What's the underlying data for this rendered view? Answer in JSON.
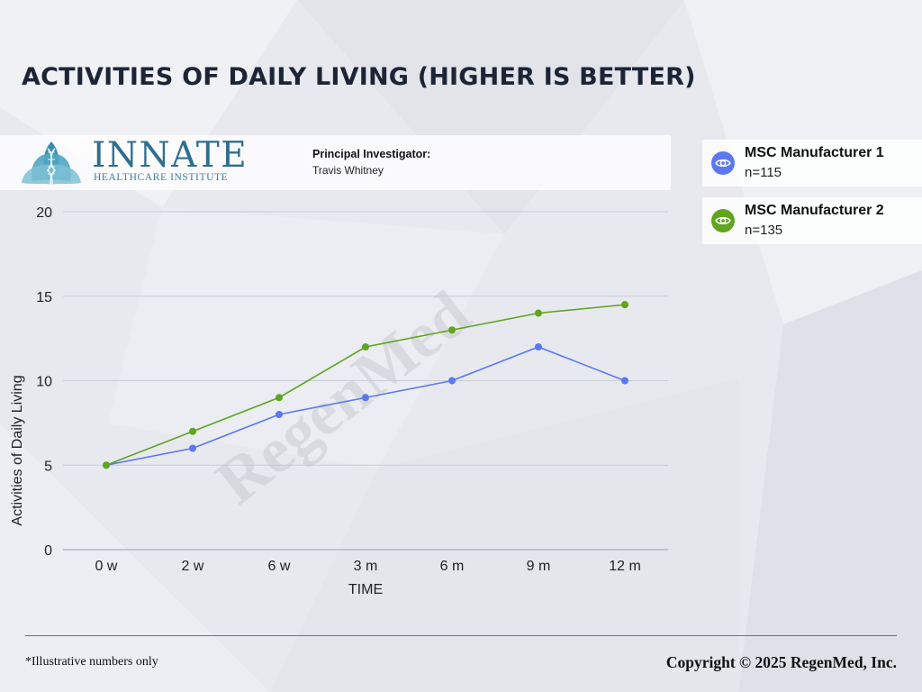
{
  "page": {
    "title": "ACTIVITIES OF DAILY LIVING (HIGHER IS BETTER)",
    "footnote": "*Illustrative numbers only",
    "copyright": "Copyright © 2025 RegenMed, Inc.",
    "watermark": "RegenMed"
  },
  "header": {
    "logo_icon": "lotus-dna-icon",
    "brand_name": "INNATE",
    "brand_subtitle": "HEALTHCARE INSTITUTE",
    "pi_label": "Principal Investigator:",
    "pi_name": "Travis Whitney"
  },
  "legend": [
    {
      "name": "MSC Manufacturer 1",
      "n": "n=115",
      "icon": "eye-icon",
      "color": "#5b78f0"
    },
    {
      "name": "MSC Manufacturer 2",
      "n": "n=135",
      "icon": "eye-icon",
      "color": "#5fa51f"
    }
  ],
  "chart_data": {
    "type": "line",
    "title": "",
    "xlabel": "TIME",
    "ylabel": "Activities of Daily Living",
    "categories": [
      "0 w",
      "2 w",
      "6 w",
      "3 m",
      "6 m",
      "9 m",
      "12 m"
    ],
    "ylim": [
      0,
      20
    ],
    "yticks": [
      0,
      5,
      10,
      15,
      20
    ],
    "grid": true,
    "series": [
      {
        "name": "MSC Manufacturer 1",
        "color": "#5b78f0",
        "values": [
          5,
          6,
          8,
          9,
          10,
          12,
          10
        ]
      },
      {
        "name": "MSC Manufacturer 2",
        "color": "#5fa51f",
        "values": [
          5,
          7,
          9,
          12,
          13,
          14,
          14.5
        ]
      }
    ]
  }
}
